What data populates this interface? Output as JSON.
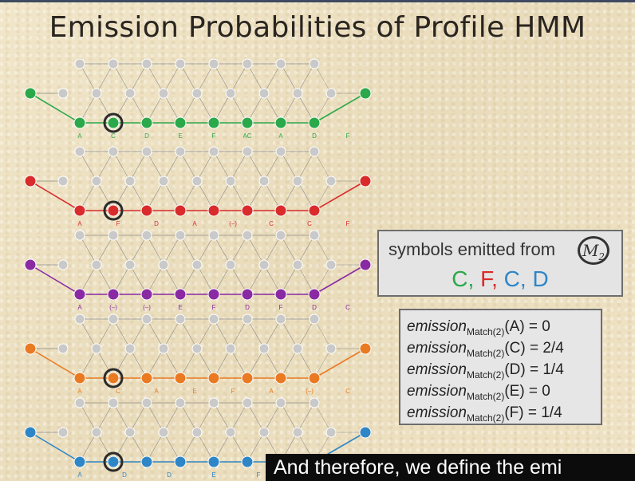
{
  "title": "Emission Probabilities of Profile HMM",
  "colors": {
    "green": "#2aa84a",
    "red": "#d92b2b",
    "purple": "#8a2aa3",
    "orange": "#ea7a22",
    "blue": "#2f86c6",
    "gray_node": "#c9c9c9"
  },
  "hmm_paths": [
    {
      "color": "green",
      "labels": [
        "A",
        "C",
        "D",
        "E",
        "F",
        "AC",
        "A",
        "D",
        "F"
      ]
    },
    {
      "color": "red",
      "labels": [
        "A",
        "F",
        "D",
        "A",
        "(–)",
        "C",
        "C",
        "F"
      ]
    },
    {
      "color": "purple",
      "labels": [
        "A",
        "(–)",
        "(–)",
        "E",
        "F",
        "D",
        "F",
        "D",
        "C"
      ]
    },
    {
      "color": "orange",
      "labels": [
        "A",
        "C",
        "A",
        "E",
        "F",
        "A",
        "(–)",
        "C"
      ]
    },
    {
      "color": "blue",
      "labels": [
        "A",
        "D",
        "D",
        "E",
        "F",
        "AA",
        "A"
      ]
    }
  ],
  "symbols_box": {
    "title": "symbols emitted from",
    "state": "M",
    "state_sub": "2",
    "symbols": [
      {
        "text": "C",
        "color": "#2aa84a"
      },
      {
        "text": "F",
        "color": "#d92b2b"
      },
      {
        "text": "C",
        "color": "#2f86c6"
      },
      {
        "text": "D",
        "color": "#2f86c6"
      }
    ]
  },
  "emissions": [
    {
      "fn": "emission",
      "sub": "Match(2)",
      "arg": "(A) = 0"
    },
    {
      "fn": "emission",
      "sub": "Match(2)",
      "arg": "(C) = 2/4"
    },
    {
      "fn": "emission",
      "sub": "Match(2)",
      "arg": "(D) = 1/4"
    },
    {
      "fn": "emission",
      "sub": "Match(2)",
      "arg": "(E) = 0"
    },
    {
      "fn": "emission",
      "sub": "Match(2)",
      "arg": "(F) = 1/4"
    }
  ],
  "caption": "And therefore, we define the emi"
}
